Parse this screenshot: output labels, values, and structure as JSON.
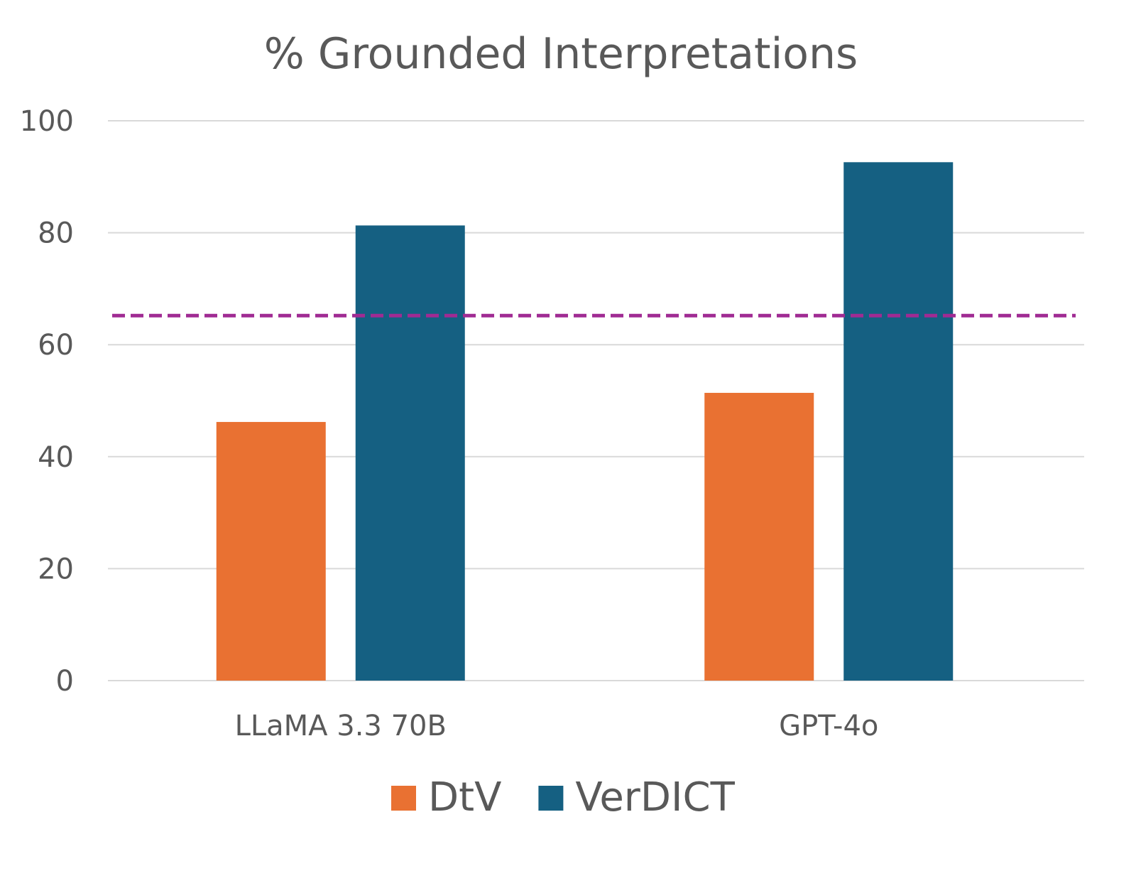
{
  "chart_data": {
    "type": "bar",
    "title": "% Grounded Interpretations",
    "categories": [
      "LLaMA 3.3 70B",
      "GPT-4o"
    ],
    "series": [
      {
        "name": "DtV",
        "values": [
          46.2,
          51.4
        ],
        "color": "#E97132"
      },
      {
        "name": "VerDICT",
        "values": [
          81.3,
          92.6
        ],
        "color": "#156082"
      }
    ],
    "reference_line": {
      "value": 65.2,
      "style": "dashed",
      "color": "#A02B93"
    },
    "yticks": [
      0,
      20,
      40,
      60,
      80,
      100
    ],
    "ylim": [
      0,
      100
    ],
    "xlabel": "",
    "ylabel": "",
    "grid": true,
    "legend": "bottom"
  }
}
